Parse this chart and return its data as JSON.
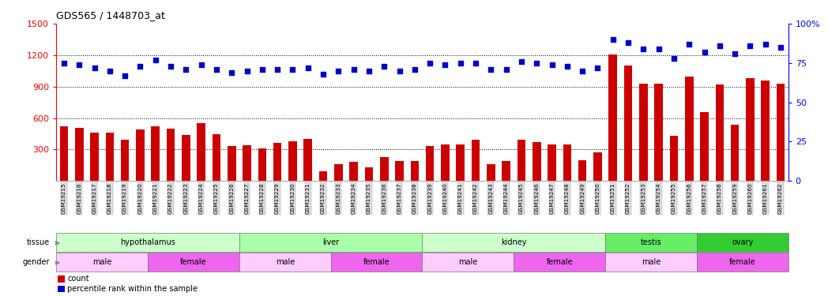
{
  "title": "GDS565 / 1448703_at",
  "samples": [
    "GSM19215",
    "GSM19216",
    "GSM19217",
    "GSM19218",
    "GSM19219",
    "GSM19220",
    "GSM19221",
    "GSM19222",
    "GSM19223",
    "GSM19224",
    "GSM19225",
    "GSM19226",
    "GSM19227",
    "GSM19228",
    "GSM19229",
    "GSM19230",
    "GSM19231",
    "GSM19232",
    "GSM19233",
    "GSM19234",
    "GSM19235",
    "GSM19236",
    "GSM19237",
    "GSM19238",
    "GSM19239",
    "GSM19240",
    "GSM19241",
    "GSM19242",
    "GSM19243",
    "GSM19244",
    "GSM19245",
    "GSM19246",
    "GSM19247",
    "GSM19248",
    "GSM19249",
    "GSM19250",
    "GSM19251",
    "GSM19252",
    "GSM19253",
    "GSM19254",
    "GSM19255",
    "GSM19256",
    "GSM19257",
    "GSM19258",
    "GSM19259",
    "GSM19260",
    "GSM19261",
    "GSM19262"
  ],
  "counts": [
    520,
    510,
    460,
    460,
    390,
    490,
    520,
    500,
    440,
    550,
    450,
    330,
    340,
    310,
    360,
    380,
    400,
    90,
    160,
    180,
    130,
    230,
    190,
    190,
    330,
    350,
    350,
    390,
    160,
    190,
    390,
    370,
    350,
    350,
    200,
    270,
    1210,
    1100,
    930,
    930,
    430,
    1000,
    660,
    920,
    540,
    980,
    960,
    930
  ],
  "percentile_ranks": [
    75,
    74,
    72,
    70,
    67,
    73,
    77,
    73,
    71,
    74,
    71,
    69,
    70,
    71,
    71,
    71,
    72,
    68,
    70,
    71,
    70,
    73,
    70,
    71,
    75,
    74,
    75,
    75,
    71,
    71,
    76,
    75,
    74,
    73,
    70,
    72,
    90,
    88,
    84,
    84,
    78,
    87,
    82,
    86,
    81,
    86,
    87,
    85
  ],
  "tissue_groups": [
    {
      "label": "hypothalamus",
      "start": 0,
      "end": 11,
      "color": "#ccffcc"
    },
    {
      "label": "liver",
      "start": 12,
      "end": 23,
      "color": "#aaffaa"
    },
    {
      "label": "kidney",
      "start": 24,
      "end": 35,
      "color": "#ccffcc"
    },
    {
      "label": "testis",
      "start": 36,
      "end": 41,
      "color": "#66ee66"
    },
    {
      "label": "ovary",
      "start": 42,
      "end": 47,
      "color": "#33cc33"
    }
  ],
  "gender_groups": [
    {
      "label": "male",
      "start": 0,
      "end": 5,
      "color": "#ffccff"
    },
    {
      "label": "female",
      "start": 6,
      "end": 11,
      "color": "#ee66ee"
    },
    {
      "label": "male",
      "start": 12,
      "end": 17,
      "color": "#ffccff"
    },
    {
      "label": "female",
      "start": 18,
      "end": 23,
      "color": "#ee66ee"
    },
    {
      "label": "male",
      "start": 24,
      "end": 29,
      "color": "#ffccff"
    },
    {
      "label": "female",
      "start": 30,
      "end": 35,
      "color": "#ee66ee"
    },
    {
      "label": "male",
      "start": 36,
      "end": 41,
      "color": "#ffccff"
    },
    {
      "label": "female",
      "start": 42,
      "end": 47,
      "color": "#ee66ee"
    }
  ],
  "bar_color": "#cc0000",
  "dot_color": "#0000cc",
  "ylim_left": [
    0,
    1500
  ],
  "ylim_right": [
    0,
    100
  ],
  "yticks_left": [
    300,
    600,
    900,
    1200,
    1500
  ],
  "yticks_right": [
    0,
    25,
    50,
    75,
    100
  ],
  "grid_values": [
    300,
    600,
    900,
    1200
  ],
  "row_label_color": "#888888"
}
